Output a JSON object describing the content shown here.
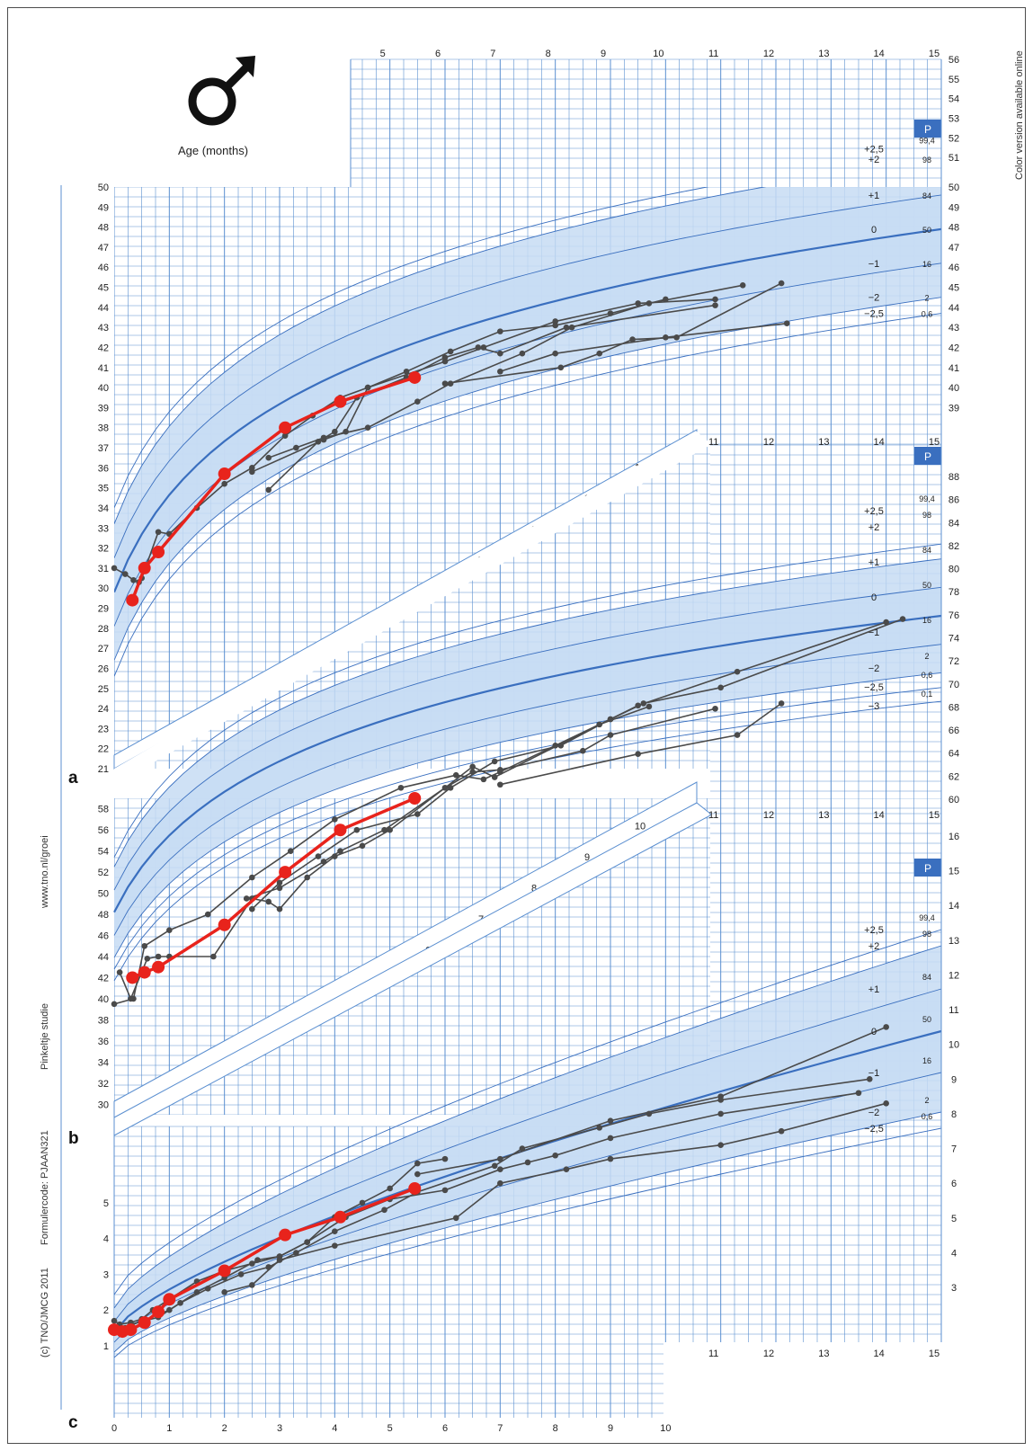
{
  "side_text": {
    "color_note": "Color version available online",
    "website": "www.tno.nl/groei",
    "study": "Pinkeltje studie",
    "form_code": "Formulercode: PJAAN321",
    "copyright": "(c) TNO/JMCG 2011"
  },
  "age_label": "Age (months)",
  "symbol": "male-symbol",
  "percentile_header": "P",
  "colors": {
    "grid": "#5b8fd0",
    "band": "#c7dcf3",
    "median": "#3a6fbf",
    "patients": "#4a4a4a",
    "index_patient": "#e8231c"
  },
  "chart_data": [
    {
      "panel": "a",
      "type": "line",
      "title": "",
      "xlabel": "Age (months)",
      "ylabel": "",
      "xlim": [
        0,
        15
      ],
      "ylim": [
        21,
        50
      ],
      "top_ylim": [
        39,
        56
      ],
      "top_scale_ticks": [
        39,
        40,
        41,
        42,
        43,
        44,
        45,
        46,
        47,
        48,
        49,
        50,
        51,
        52,
        53,
        54,
        55,
        56
      ],
      "left_ticks": [
        21,
        22,
        23,
        24,
        25,
        26,
        27,
        28,
        29,
        30,
        31,
        32,
        33,
        34,
        35,
        36,
        37,
        38,
        39,
        40,
        41,
        42,
        43,
        44,
        45,
        46,
        47,
        48,
        49,
        50
      ],
      "x_ticks_top": [
        5,
        6,
        7,
        8,
        9,
        10,
        11,
        12,
        13,
        14,
        15
      ],
      "diag_ticks": [
        1,
        2,
        3,
        4,
        5,
        6,
        7,
        8,
        9,
        10
      ],
      "sd_labels": [
        "+2,5",
        "+2",
        "+1",
        "0",
        "−1",
        "−2",
        "−2,5"
      ],
      "percentiles": [
        "99,4",
        "98",
        "84",
        "50",
        "16",
        "2",
        "0,6"
      ],
      "sd_curves_at_15": {
        "+2,5": 51.9,
        "+2": 51.4,
        "+1": 49.6,
        "0": 47.9,
        "-1": 46.2,
        "-2": 44.5,
        "-2,5": 43.7
      },
      "sd_curves_at_0": {
        "+2,5": 34.0,
        "+2": 33.2,
        "+1": 31.5,
        "0": 29.8,
        "-1": 28.1,
        "-2": 26.4,
        "-2,5": 25.6
      },
      "index_patient": {
        "x": [
          0.33,
          0.55,
          0.8,
          2.0,
          3.1,
          4.1,
          5.45
        ],
        "y": [
          29.4,
          31.0,
          31.8,
          35.7,
          38.0,
          39.3,
          40.5
        ]
      },
      "other_patients": [
        {
          "x": [
            0.0,
            0.2,
            0.35,
            0.45,
            0.5,
            0.8,
            1.0,
            1.5,
            2.0,
            2.5,
            3.1,
            3.6,
            4.1,
            4.6,
            5.3,
            6.1,
            7.0,
            8.0,
            9.0,
            10.0
          ],
          "y": [
            31.0,
            30.7,
            30.4,
            30.3,
            30.5,
            32.8,
            32.7,
            34.0,
            35.2,
            36.0,
            37.6,
            38.6,
            39.5,
            40.0,
            40.8,
            41.8,
            42.8,
            43.1,
            43.7,
            44.4
          ]
        },
        {
          "x": [
            2.5,
            3.8,
            4.2,
            4.6,
            6.0,
            6.7,
            8.0,
            9.5,
            10.9
          ],
          "y": [
            35.8,
            37.4,
            37.8,
            40.0,
            41.3,
            42.0,
            43.3,
            44.2,
            44.4
          ]
        },
        {
          "x": [
            2.8,
            3.3,
            3.8,
            4.6,
            5.5,
            6.1,
            7.4,
            8.3,
            9.7,
            11.4
          ],
          "y": [
            36.5,
            37.0,
            37.5,
            38.0,
            39.3,
            40.2,
            41.7,
            43.0,
            44.2,
            45.1
          ]
        },
        {
          "x": [
            2.8,
            3.7,
            4.0,
            4.4,
            5.3,
            6.0,
            6.6,
            7.0,
            8.2,
            10.9
          ],
          "y": [
            34.9,
            37.3,
            37.8,
            39.5,
            40.5,
            41.5,
            42.0,
            41.7,
            43.0,
            44.1
          ]
        },
        {
          "x": [
            6.0,
            8.1,
            8.8,
            9.4,
            10.2,
            12.1
          ],
          "y": [
            40.2,
            41.0,
            41.7,
            42.4,
            42.5,
            45.2
          ]
        },
        {
          "x": [
            7.0,
            8.0,
            10.0,
            12.2
          ],
          "y": [
            40.8,
            41.7,
            42.5,
            43.2
          ]
        }
      ]
    },
    {
      "panel": "b",
      "type": "line",
      "title": "",
      "xlabel": "Age (months)",
      "ylabel": "",
      "xlim": [
        0,
        15
      ],
      "ylim": [
        29,
        59
      ],
      "right_ylim": [
        60,
        88
      ],
      "left_ticks": [
        30,
        32,
        34,
        36,
        38,
        40,
        42,
        44,
        46,
        48,
        50,
        52,
        54,
        56,
        58
      ],
      "right_ticks": [
        60,
        62,
        64,
        66,
        68,
        70,
        72,
        74,
        76,
        78,
        80,
        82,
        84,
        86,
        88
      ],
      "x_ticks_top": [
        11,
        12,
        13,
        14,
        15
      ],
      "diag_ticks": [
        1,
        2,
        3,
        4,
        5,
        6,
        7,
        8,
        9,
        10
      ],
      "sd_labels": [
        "+2,5",
        "+2",
        "+1",
        "0",
        "−1",
        "−2",
        "−2,5",
        "−3"
      ],
      "percentiles": [
        "99,4",
        "98",
        "84",
        "50",
        "16",
        "2",
        "0,6",
        "0,1"
      ],
      "index_patient": {
        "x": [
          0.33,
          0.55,
          0.8,
          2.0,
          3.1,
          4.1,
          5.45
        ],
        "y": [
          42.0,
          42.5,
          43.0,
          47.0,
          52.0,
          56.0,
          59.0
        ]
      },
      "other_patients": [
        {
          "x": [
            0.0,
            0.35,
            0.55,
            1.0,
            1.7,
            2.5,
            3.2,
            4.0,
            5.2,
            6.2,
            6.7,
            7.0,
            8.0,
            9.0,
            9.5,
            11.3,
            14.0
          ],
          "y": [
            39.5,
            40.0,
            45.0,
            46.5,
            48.0,
            51.5,
            54.0,
            57.0,
            60.0,
            61.2,
            60.8,
            61.5,
            64.0,
            66.5,
            67.8,
            71.0,
            75.7
          ]
        },
        {
          "x": [
            0.1,
            0.3,
            0.6,
            0.8,
            1.0,
            1.8,
            2.5,
            2.8,
            3.0,
            3.5,
            4.0,
            4.5,
            5.0,
            6.5,
            6.9,
            8.8,
            9.7
          ],
          "y": [
            42.5,
            40.0,
            43.8,
            44.0,
            44.0,
            44.0,
            49.5,
            49.2,
            48.5,
            51.5,
            53.5,
            54.5,
            56.0,
            62.0,
            61.0,
            66.0,
            67.7
          ]
        },
        {
          "x": [
            2.5,
            3.0,
            3.7,
            4.4,
            5.5,
            6.1,
            6.9,
            8.1,
            9.0,
            9.6,
            11.0,
            14.3
          ],
          "y": [
            48.5,
            51.0,
            53.5,
            56.0,
            57.5,
            60.0,
            62.5,
            64.0,
            66.5,
            68.0,
            69.5,
            76.0
          ]
        },
        {
          "x": [
            2.4,
            3.0,
            3.8,
            4.1,
            4.9,
            6.0,
            6.5,
            7.0,
            8.5,
            9.0,
            10.9
          ],
          "y": [
            49.5,
            50.5,
            53.0,
            54.0,
            56.0,
            60.0,
            61.5,
            61.7,
            63.5,
            65.0,
            67.5
          ]
        },
        {
          "x": [
            7.0,
            9.5,
            11.3,
            12.1
          ],
          "y": [
            60.3,
            63.2,
            65.0,
            68.0
          ]
        }
      ]
    },
    {
      "panel": "c",
      "type": "line",
      "title": "",
      "xlabel": "Age (months)",
      "ylabel": "",
      "xlim": [
        0,
        15
      ],
      "ylim": [
        1,
        5.5
      ],
      "right_ylim": [
        3,
        16
      ],
      "left_ticks": [
        1,
        2,
        3,
        4,
        5
      ],
      "right_ticks": [
        3,
        4,
        5,
        6,
        7,
        8,
        9,
        10,
        11,
        12,
        13,
        14,
        15,
        16
      ],
      "x_ticks_bottom": [
        0,
        1,
        2,
        3,
        4,
        5,
        6,
        7,
        8,
        9,
        10
      ],
      "x_ticks_inner": [
        11,
        12,
        13,
        14,
        15
      ],
      "x_ticks_top": [
        11,
        12,
        13,
        14,
        15
      ],
      "diag_ticks": [
        1,
        2,
        3,
        4,
        5,
        6,
        7,
        8,
        9,
        10
      ],
      "sd_labels": [
        "+2,5",
        "+2",
        "+1",
        "0",
        "−1",
        "−2",
        "−2,5"
      ],
      "percentiles": [
        "99,4",
        "98",
        "84",
        "50",
        "16",
        "2",
        "0,6"
      ],
      "index_patient": {
        "x": [
          0.0,
          0.15,
          0.3,
          0.55,
          0.8,
          1.0,
          2.0,
          3.1,
          4.1,
          5.45
        ],
        "y": [
          1.45,
          1.4,
          1.45,
          1.65,
          1.95,
          2.3,
          3.1,
          4.1,
          4.6,
          5.4
        ]
      },
      "other_patients": [
        {
          "x": [
            0.0,
            0.1,
            0.3,
            0.5,
            0.7,
            1.0,
            1.5,
            2.0,
            2.5,
            3.0,
            3.5,
            4.0,
            4.5,
            5.0,
            5.5,
            6.0
          ],
          "y": [
            1.7,
            1.6,
            1.65,
            1.75,
            2.0,
            2.3,
            2.8,
            3.1,
            3.3,
            3.5,
            3.9,
            4.6,
            5.0,
            5.4,
            6.1,
            6.7
          ]
        },
        {
          "x": [
            0.2,
            0.5,
            1.0,
            1.5,
            2.0,
            2.6,
            3.0,
            3.5,
            4.2,
            5.0,
            6.0,
            7.0,
            7.5,
            8.0,
            9.0,
            11.0,
            13.5
          ],
          "y": [
            1.5,
            1.7,
            2.0,
            2.5,
            2.9,
            3.4,
            3.5,
            3.9,
            4.6,
            5.1,
            5.8,
            6.4,
            6.6,
            6.8,
            7.3,
            8.0,
            8.6
          ]
        },
        {
          "x": [
            0.3,
            0.8,
            1.2,
            1.7,
            2.3,
            2.8,
            3.3,
            4.0,
            4.9,
            5.5,
            6.9,
            7.4,
            8.8,
            9.7,
            11.0,
            13.7
          ],
          "y": [
            1.6,
            1.8,
            2.2,
            2.6,
            3.0,
            3.2,
            3.6,
            4.2,
            4.8,
            5.3,
            6.5,
            7.0,
            7.6,
            8.0,
            8.4,
            9.0
          ]
        },
        {
          "x": [
            2.0,
            2.5,
            3.0,
            4.0,
            6.2,
            7.0,
            8.2,
            9.0,
            11.0,
            12.1,
            14.0
          ],
          "y": [
            2.5,
            2.7,
            3.4,
            3.8,
            5.0,
            6.0,
            6.4,
            6.7,
            7.1,
            7.5,
            8.3
          ]
        },
        {
          "x": [
            5.5,
            7.0,
            9.0,
            11.0,
            14.0
          ],
          "y": [
            5.8,
            6.7,
            7.8,
            8.5,
            10.5
          ]
        }
      ]
    }
  ]
}
